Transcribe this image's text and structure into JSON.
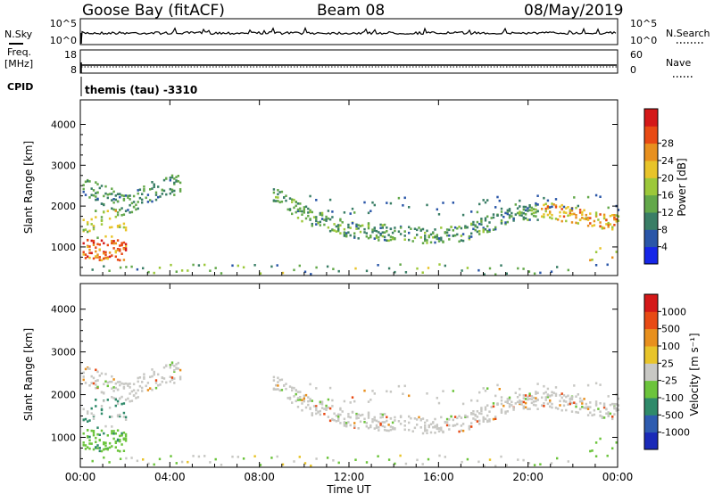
{
  "header": {
    "station": "Goose Bay (fitACF)",
    "beam": "Beam 08",
    "date": "08/May/2019"
  },
  "noise_panel": {
    "left_label": "N.Sky",
    "right_label": "N.Search",
    "left_ticks": [
      "10^5",
      "10^0"
    ],
    "right_ticks": [
      "10^5",
      "10^0"
    ]
  },
  "freq_panel": {
    "left_label_1": "Freq.",
    "left_label_2": "[MHz]",
    "right_label": "Nave",
    "left_ticks": [
      "18",
      "8"
    ],
    "right_ticks": [
      "60",
      "0"
    ]
  },
  "cpid": {
    "label": "CPID",
    "value": "themis (tau) -3310"
  },
  "chart_data": [
    {
      "type": "heatmap",
      "ylabel": "Slant Range [km]",
      "ylim": [
        300,
        4600
      ],
      "yticks": [
        1000,
        2000,
        3000,
        4000
      ],
      "xlim": [
        0,
        24
      ],
      "colorbar": {
        "label": "Power [dB]",
        "ticks": [
          "4",
          "8",
          "12",
          "16",
          "20",
          "24",
          "28"
        ],
        "colors": [
          "#1626e8",
          "#2a56a8",
          "#3a7e66",
          "#63a84a",
          "#9cc83a",
          "#e8c42a",
          "#e8901e",
          "#e84a14",
          "#d41818"
        ]
      }
    },
    {
      "type": "heatmap",
      "ylabel": "Slant Range [km]",
      "ylim": [
        300,
        4600
      ],
      "yticks": [
        1000,
        2000,
        3000,
        4000
      ],
      "xlim": [
        0,
        24
      ],
      "colorbar": {
        "label": "Velocity [m s⁻¹]",
        "ticks": [
          "1000",
          "500",
          "100",
          "25",
          "-25",
          "-100",
          "-500",
          "-1000"
        ],
        "colors": [
          "#1a2ab8",
          "#2e5cb0",
          "#2f8a6a",
          "#6cc43c",
          "#c8c8c4",
          "#e8c42a",
          "#e8901e",
          "#e84a14",
          "#d41818"
        ]
      }
    }
  ],
  "x_axis": {
    "label": "Time UT",
    "ticks": [
      "00:00",
      "04:00",
      "08:00",
      "12:00",
      "16:00",
      "20:00",
      "00:00"
    ]
  }
}
